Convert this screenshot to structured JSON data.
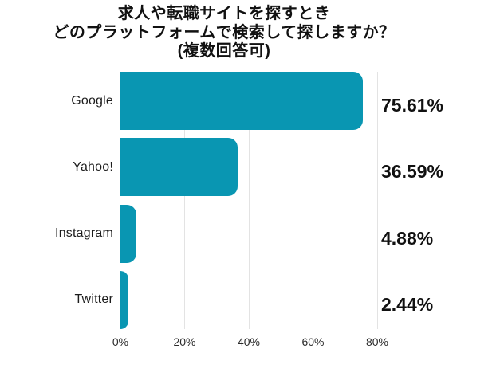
{
  "chart_data": {
    "type": "bar",
    "orientation": "horizontal",
    "title": "求人や転職サイトを探すとき どのプラットフォームで検索して探しますか？ (複数回答可)",
    "title_lines": [
      "求人や転職サイトを探すとき",
      "どのプラットフォームで検索して探しますか？",
      "(複数回答可)"
    ],
    "categories": [
      "Google",
      "Yahoo!",
      "Instagram",
      "Twitter"
    ],
    "values": [
      75.61,
      36.59,
      4.88,
      2.44
    ],
    "value_labels": [
      "75.61%",
      "36.59%",
      "4.88%",
      "2.44%"
    ],
    "x_ticks": [
      0,
      20,
      40,
      60,
      80
    ],
    "x_tick_labels": [
      "0%",
      "20%",
      "40%",
      "60%",
      "80%"
    ],
    "xlim": [
      0,
      80
    ],
    "xlabel": "",
    "ylabel": "",
    "grid": true,
    "legend": false,
    "bar_color": "#0996b2"
  },
  "colors": {
    "bar": "#0996b2",
    "gridline": "#e3e3e3",
    "text": "#111111"
  }
}
